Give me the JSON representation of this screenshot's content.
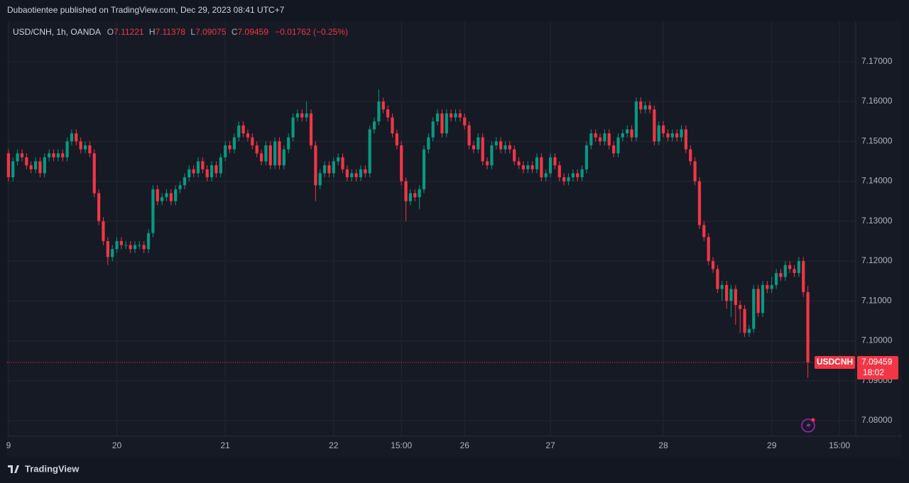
{
  "header": {
    "published": "Dubaotientee published on TradingView.com, Dec 29, 2023 08:41 UTC+7"
  },
  "footer": {
    "brand": "TradingView"
  },
  "chart_data": {
    "type": "candlestick",
    "symbol_info": "USD/CNH, 1h, OANDA",
    "ohlc_letters": [
      "O",
      "H",
      "L",
      "C"
    ],
    "change": "−0.01762 (−0.25%)",
    "price_tag": {
      "symbol": "USDCNH",
      "countdown": "18:02"
    },
    "up_color": "#089981",
    "down_color": "#f23645",
    "grid": true,
    "xlim": [
      -0.3,
      187.6
    ],
    "xticks": [
      {
        "value": 0,
        "label": "9"
      },
      {
        "value": 24,
        "label": "20"
      },
      {
        "value": 48,
        "label": "21"
      },
      {
        "value": 72,
        "label": "22"
      },
      {
        "value": 87,
        "label": "15:00"
      },
      {
        "value": 101,
        "label": "26"
      },
      {
        "value": 120,
        "label": "27"
      },
      {
        "value": 145,
        "label": "28"
      },
      {
        "value": 169,
        "label": "29"
      },
      {
        "value": 184,
        "label": "15:00"
      }
    ],
    "ylim": [
      7.0761,
      7.1801
    ],
    "yticks": [
      {
        "value": 7.08,
        "label": "7.08000"
      },
      {
        "value": 7.09,
        "label": "7.09000"
      },
      {
        "value": 7.1,
        "label": "7.10000"
      },
      {
        "value": 7.11,
        "label": "7.11000"
      },
      {
        "value": 7.12,
        "label": "7.12000"
      },
      {
        "value": 7.13,
        "label": "7.13000"
      },
      {
        "value": 7.14,
        "label": "7.14000"
      },
      {
        "value": 7.15,
        "label": "7.15000"
      },
      {
        "value": 7.16,
        "label": "7.16000"
      },
      {
        "value": 7.17,
        "label": "7.17000"
      }
    ],
    "open": [
      7.147,
      7.141,
      7.145,
      7.147,
      7.146,
      7.144,
      7.143,
      7.145,
      7.142,
      7.146,
      7.147,
      7.146,
      7.147,
      7.146,
      7.15,
      7.152,
      7.15,
      7.148,
      7.149,
      7.147,
      7.137,
      7.13,
      7.125,
      7.121,
      7.123,
      7.125,
      7.124,
      7.124,
      7.123,
      7.124,
      7.124,
      7.123,
      7.127,
      7.138,
      7.135,
      7.136,
      7.137,
      7.135,
      7.138,
      7.139,
      7.141,
      7.143,
      7.142,
      7.145,
      7.143,
      7.141,
      7.144,
      7.142,
      7.146,
      7.149,
      7.148,
      7.151,
      7.154,
      7.152,
      7.151,
      7.149,
      7.147,
      7.145,
      7.149,
      7.144,
      7.15,
      7.144,
      7.148,
      7.151,
      7.156,
      7.157,
      7.156,
      7.157,
      7.149,
      7.139,
      7.142,
      7.144,
      7.142,
      7.145,
      7.146,
      7.143,
      7.141,
      7.142,
      7.141,
      7.143,
      7.142,
      7.153,
      7.155,
      7.16,
      7.158,
      7.156,
      7.152,
      7.149,
      7.14,
      7.135,
      7.137,
      7.136,
      7.138,
      7.148,
      7.151,
      7.155,
      7.157,
      7.152,
      7.157,
      7.156,
      7.157,
      7.156,
      7.154,
      7.149,
      7.148,
      7.151,
      7.145,
      7.144,
      7.149,
      7.15,
      7.148,
      7.149,
      7.148,
      7.145,
      7.144,
      7.143,
      7.144,
      7.143,
      7.146,
      7.141,
      7.142,
      7.146,
      7.144,
      7.141,
      7.14,
      7.141,
      7.142,
      7.141,
      7.143,
      7.149,
      7.152,
      7.151,
      7.15,
      7.152,
      7.149,
      7.147,
      7.151,
      7.152,
      7.153,
      7.151,
      7.16,
      7.158,
      7.159,
      7.158,
      7.15,
      7.154,
      7.152,
      7.151,
      7.152,
      7.151,
      7.153,
      7.148,
      7.145,
      7.14,
      7.129,
      7.126,
      7.12,
      7.118,
      7.113,
      7.114,
      7.11,
      7.113,
      7.109,
      7.108,
      7.102,
      7.103,
      7.113,
      7.107,
      7.114,
      7.113,
      7.114,
      7.117,
      7.116,
      7.119,
      7.118,
      7.117,
      7.12,
      7.11221
    ],
    "high": [
      7.148,
      7.146,
      7.148,
      7.148,
      7.147,
      7.145,
      7.146,
      7.146,
      7.147,
      7.148,
      7.148,
      7.148,
      7.148,
      7.151,
      7.153,
      7.153,
      7.151,
      7.15,
      7.15,
      7.148,
      7.138,
      7.131,
      7.126,
      7.124,
      7.126,
      7.126,
      7.125,
      7.125,
      7.125,
      7.125,
      7.125,
      7.128,
      7.139,
      7.139,
      7.137,
      7.138,
      7.138,
      7.139,
      7.14,
      7.142,
      7.144,
      7.144,
      7.146,
      7.146,
      7.144,
      7.145,
      7.145,
      7.147,
      7.15,
      7.15,
      7.152,
      7.155,
      7.155,
      7.153,
      7.152,
      7.15,
      7.148,
      7.15,
      7.15,
      7.151,
      7.151,
      7.149,
      7.152,
      7.157,
      7.158,
      7.158,
      7.16,
      7.158,
      7.15,
      7.143,
      7.145,
      7.145,
      7.146,
      7.147,
      7.147,
      7.144,
      7.143,
      7.143,
      7.144,
      7.144,
      7.154,
      7.156,
      7.163,
      7.161,
      7.159,
      7.157,
      7.153,
      7.15,
      7.141,
      7.138,
      7.138,
      7.139,
      7.149,
      7.152,
      7.156,
      7.158,
      7.158,
      7.158,
      7.158,
      7.158,
      7.158,
      7.157,
      7.155,
      7.15,
      7.152,
      7.152,
      7.146,
      7.15,
      7.151,
      7.151,
      7.15,
      7.15,
      7.149,
      7.146,
      7.145,
      7.145,
      7.145,
      7.147,
      7.147,
      7.143,
      7.147,
      7.147,
      7.145,
      7.142,
      7.142,
      7.143,
      7.143,
      7.144,
      7.15,
      7.153,
      7.153,
      7.152,
      7.153,
      7.153,
      7.15,
      7.152,
      7.153,
      7.154,
      7.154,
      7.161,
      7.161,
      7.16,
      7.16,
      7.159,
      7.155,
      7.155,
      7.153,
      7.153,
      7.153,
      7.154,
      7.154,
      7.149,
      7.146,
      7.141,
      7.13,
      7.127,
      7.121,
      7.119,
      7.115,
      7.115,
      7.114,
      7.114,
      7.11,
      7.109,
      7.104,
      7.114,
      7.114,
      7.115,
      7.115,
      7.116,
      7.118,
      7.118,
      7.12,
      7.12,
      7.119,
      7.121,
      7.121,
      7.11378
    ],
    "low": [
      7.14,
      7.14,
      7.144,
      7.145,
      7.143,
      7.142,
      7.142,
      7.141,
      7.141,
      7.145,
      7.145,
      7.145,
      7.145,
      7.145,
      7.149,
      7.149,
      7.147,
      7.147,
      7.146,
      7.136,
      7.129,
      7.124,
      7.119,
      7.12,
      7.122,
      7.123,
      7.123,
      7.122,
      7.122,
      7.123,
      7.122,
      7.122,
      7.126,
      7.134,
      7.134,
      7.135,
      7.134,
      7.134,
      7.137,
      7.138,
      7.14,
      7.141,
      7.141,
      7.142,
      7.14,
      7.14,
      7.141,
      7.141,
      7.145,
      7.147,
      7.147,
      7.15,
      7.151,
      7.15,
      7.148,
      7.146,
      7.144,
      7.144,
      7.143,
      7.143,
      7.143,
      7.143,
      7.147,
      7.15,
      7.155,
      7.155,
      7.155,
      7.148,
      7.135,
      7.138,
      7.141,
      7.141,
      7.141,
      7.144,
      7.142,
      7.14,
      7.14,
      7.14,
      7.14,
      7.141,
      7.141,
      7.152,
      7.154,
      7.157,
      7.155,
      7.151,
      7.148,
      7.139,
      7.13,
      7.134,
      7.135,
      7.133,
      7.137,
      7.147,
      7.15,
      7.154,
      7.151,
      7.151,
      7.155,
      7.155,
      7.155,
      7.153,
      7.148,
      7.147,
      7.147,
      7.144,
      7.143,
      7.143,
      7.148,
      7.147,
      7.147,
      7.147,
      7.144,
      7.143,
      7.142,
      7.142,
      7.142,
      7.142,
      7.14,
      7.14,
      7.141,
      7.143,
      7.14,
      7.139,
      7.139,
      7.14,
      7.14,
      7.14,
      7.142,
      7.148,
      7.15,
      7.149,
      7.149,
      7.148,
      7.146,
      7.146,
      7.15,
      7.151,
      7.15,
      7.15,
      7.157,
      7.157,
      7.157,
      7.149,
      7.149,
      7.151,
      7.15,
      7.15,
      7.15,
      7.15,
      7.147,
      7.144,
      7.139,
      7.128,
      7.125,
      7.119,
      7.117,
      7.112,
      7.11,
      7.108,
      7.106,
      7.104,
      7.102,
      7.101,
      7.101,
      7.102,
      7.106,
      7.106,
      7.112,
      7.112,
      7.113,
      7.115,
      7.115,
      7.117,
      7.116,
      7.116,
      7.111,
      7.09075
    ],
    "close": [
      7.141,
      7.145,
      7.147,
      7.146,
      7.144,
      7.143,
      7.145,
      7.142,
      7.146,
      7.147,
      7.146,
      7.147,
      7.146,
      7.15,
      7.152,
      7.15,
      7.148,
      7.149,
      7.147,
      7.137,
      7.13,
      7.125,
      7.121,
      7.123,
      7.125,
      7.124,
      7.124,
      7.123,
      7.124,
      7.124,
      7.123,
      7.127,
      7.138,
      7.135,
      7.136,
      7.137,
      7.135,
      7.138,
      7.139,
      7.141,
      7.143,
      7.142,
      7.145,
      7.143,
      7.141,
      7.144,
      7.142,
      7.146,
      7.149,
      7.148,
      7.151,
      7.154,
      7.152,
      7.151,
      7.149,
      7.147,
      7.145,
      7.149,
      7.144,
      7.15,
      7.144,
      7.148,
      7.151,
      7.156,
      7.157,
      7.156,
      7.157,
      7.149,
      7.139,
      7.142,
      7.144,
      7.142,
      7.145,
      7.146,
      7.143,
      7.141,
      7.142,
      7.141,
      7.143,
      7.142,
      7.153,
      7.155,
      7.16,
      7.158,
      7.156,
      7.152,
      7.149,
      7.14,
      7.135,
      7.137,
      7.136,
      7.138,
      7.148,
      7.151,
      7.155,
      7.157,
      7.152,
      7.157,
      7.156,
      7.157,
      7.156,
      7.154,
      7.149,
      7.148,
      7.151,
      7.145,
      7.144,
      7.149,
      7.15,
      7.148,
      7.149,
      7.148,
      7.145,
      7.144,
      7.143,
      7.144,
      7.143,
      7.146,
      7.141,
      7.142,
      7.146,
      7.144,
      7.141,
      7.14,
      7.141,
      7.142,
      7.141,
      7.143,
      7.149,
      7.152,
      7.151,
      7.15,
      7.152,
      7.149,
      7.147,
      7.151,
      7.152,
      7.153,
      7.151,
      7.16,
      7.158,
      7.159,
      7.158,
      7.15,
      7.154,
      7.152,
      7.151,
      7.152,
      7.151,
      7.153,
      7.148,
      7.145,
      7.14,
      7.129,
      7.126,
      7.12,
      7.118,
      7.113,
      7.114,
      7.11,
      7.113,
      7.109,
      7.108,
      7.102,
      7.103,
      7.113,
      7.107,
      7.114,
      7.113,
      7.114,
      7.117,
      7.116,
      7.119,
      7.118,
      7.117,
      7.12,
      7.11221,
      7.09459
    ]
  }
}
